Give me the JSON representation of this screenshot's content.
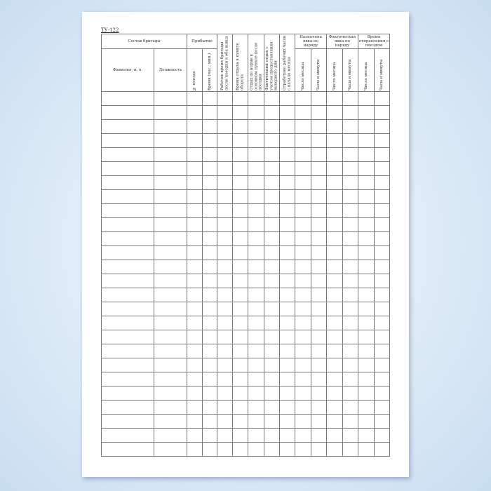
{
  "form_code": "ТУ-122",
  "header": {
    "crew": "Состав бригады",
    "name": "Фамилия, и. о.",
    "position": "Должность",
    "arrival": "Прибытие",
    "train_no": "№ поезда",
    "arrival_time": "Время (час., мин.)",
    "work_time": "Рабочее время бригады после поездки в оба конца",
    "rest_turnaround": "Время отдыха в пункте оборота",
    "rest_norm": "Отдых по норме в основном пункте после поездки",
    "rest_actual": "Фактический отдых с учетом предоставления выходного дня",
    "hours_worked": "Отработано рабочих часов с начала месяца",
    "assigned": "Назначена явка по наряду",
    "actual": "Фактическая явка по наряду",
    "departure": "Время отправления с поездом",
    "day": "Число месяца",
    "hm": "Часы и минуты"
  },
  "body_rows": 26
}
